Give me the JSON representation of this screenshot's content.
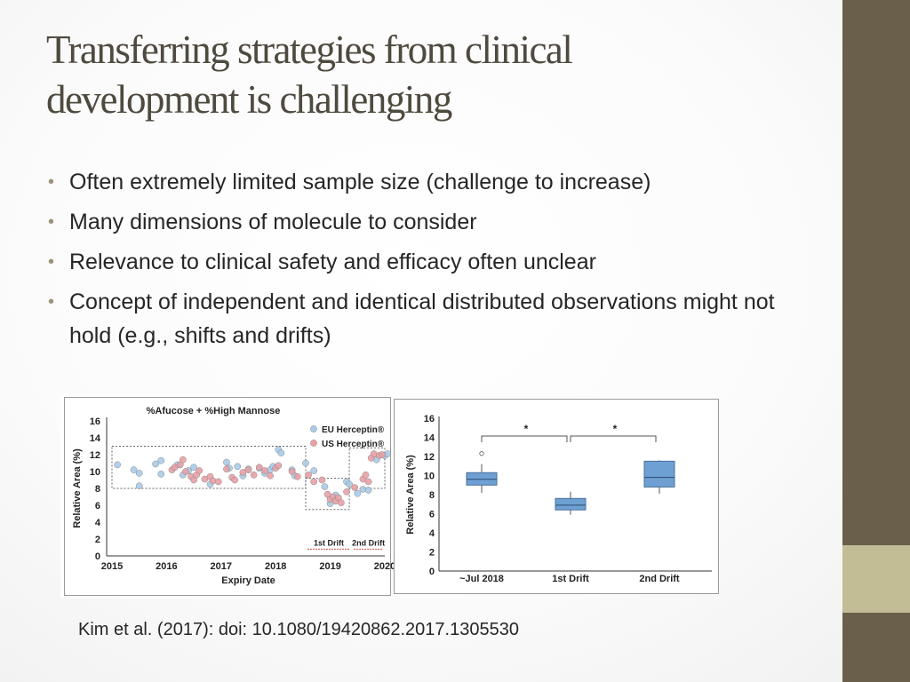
{
  "slide": {
    "title_lines": [
      "Transferring strategies from clinical",
      "development is challenging"
    ],
    "bullets": [
      "Often extremely limited sample size (challenge to increase)",
      "Many dimensions of molecule to consider",
      "Relevance to clinical safety and efficacy often unclear",
      "Concept of independent and identical distributed observations might not hold (e.g., shifts and drifts)"
    ],
    "citation": "Kim et al. (2017): doi: 10.1080/19420862.2017.1305530",
    "colors": {
      "sidebar": "#6a5f4b",
      "sidebar_accent": "#c2bd94",
      "title": "#4f4a3f",
      "bullet": "#9d9477"
    }
  },
  "chart_data": [
    {
      "type": "scatter",
      "title": "%Afucose + %High Mannose",
      "xlabel": "Expiry Date",
      "ylabel": "Relative Area (%)",
      "xticks": [
        "2015",
        "2016",
        "2017",
        "2018",
        "2019",
        "2020"
      ],
      "yticks": [
        "0",
        "2",
        "4",
        "6",
        "8",
        "10",
        "12",
        "14",
        "16"
      ],
      "xlim": [
        2015,
        2020
      ],
      "ylim": [
        0,
        16
      ],
      "legend_position": "top-right",
      "series": [
        {
          "name": "EU Herceptin®",
          "color": "#a9cbe8",
          "points": [
            [
              2015.1,
              10.8
            ],
            [
              2015.4,
              10.2
            ],
            [
              2015.5,
              8.3
            ],
            [
              2015.5,
              9.8
            ],
            [
              2015.8,
              10.9
            ],
            [
              2015.9,
              11.3
            ],
            [
              2015.9,
              9.7
            ],
            [
              2016.2,
              10.8
            ],
            [
              2016.3,
              9.6
            ],
            [
              2016.4,
              10.1
            ],
            [
              2016.5,
              10.5
            ],
            [
              2016.8,
              8.5
            ],
            [
              2017.1,
              11.1
            ],
            [
              2017.15,
              10.4
            ],
            [
              2017.3,
              10.6
            ],
            [
              2017.4,
              9.5
            ],
            [
              2017.5,
              10.3
            ],
            [
              2017.7,
              10.4
            ],
            [
              2017.8,
              9.8
            ],
            [
              2017.9,
              10.2
            ],
            [
              2017.95,
              10.6
            ],
            [
              2018.05,
              12.6
            ],
            [
              2018.1,
              12.2
            ],
            [
              2018.3,
              10.2
            ],
            [
              2018.35,
              9.5
            ],
            [
              2018.55,
              11.0
            ],
            [
              2018.7,
              10.1
            ],
            [
              2018.9,
              8.2
            ],
            [
              2019.0,
              6.2
            ],
            [
              2019.1,
              7.2
            ],
            [
              2019.3,
              8.8
            ],
            [
              2019.35,
              8.5
            ],
            [
              2019.5,
              7.4
            ],
            [
              2019.6,
              7.9
            ],
            [
              2019.7,
              7.8
            ],
            [
              2019.85,
              11.4
            ],
            [
              2020.0,
              11.9
            ],
            [
              2020.05,
              12.1
            ]
          ]
        },
        {
          "name": "US Herceptin®",
          "color": "#e8a0a5",
          "points": [
            [
              2016.1,
              10.2
            ],
            [
              2016.15,
              10.5
            ],
            [
              2016.25,
              10.8
            ],
            [
              2016.3,
              11.4
            ],
            [
              2016.35,
              10.0
            ],
            [
              2016.45,
              9.4
            ],
            [
              2016.5,
              9.0
            ],
            [
              2016.55,
              9.6
            ],
            [
              2016.6,
              10.1
            ],
            [
              2016.7,
              9.1
            ],
            [
              2016.8,
              9.4
            ],
            [
              2016.85,
              8.9
            ],
            [
              2016.95,
              8.8
            ],
            [
              2017.1,
              10.3
            ],
            [
              2017.2,
              9.3
            ],
            [
              2017.25,
              9.0
            ],
            [
              2017.4,
              9.9
            ],
            [
              2017.5,
              10.2
            ],
            [
              2017.6,
              9.6
            ],
            [
              2017.7,
              10.5
            ],
            [
              2017.8,
              10.1
            ],
            [
              2017.9,
              9.5
            ],
            [
              2018.0,
              10.4
            ],
            [
              2018.05,
              10.7
            ],
            [
              2018.3,
              10.0
            ],
            [
              2018.4,
              9.4
            ],
            [
              2018.6,
              9.6
            ],
            [
              2018.7,
              8.8
            ],
            [
              2018.85,
              9.0
            ],
            [
              2018.95,
              7.3
            ],
            [
              2019.0,
              6.7
            ],
            [
              2019.05,
              7.0
            ],
            [
              2019.1,
              6.5
            ],
            [
              2019.15,
              6.9
            ],
            [
              2019.2,
              6.3
            ],
            [
              2019.3,
              7.6
            ],
            [
              2019.45,
              8.1
            ],
            [
              2019.6,
              9.1
            ],
            [
              2019.65,
              9.6
            ],
            [
              2019.7,
              8.8
            ],
            [
              2019.75,
              11.6
            ],
            [
              2019.8,
              12.1
            ],
            [
              2019.9,
              11.9
            ],
            [
              2019.95,
              12.0
            ]
          ]
        }
      ],
      "reference_bands": [
        {
          "x": [
            2015,
            2018.55
          ],
          "y": [
            8,
            13
          ]
        },
        {
          "x": [
            2018.55,
            2019.35
          ],
          "y": [
            5.5,
            9.2
          ]
        },
        {
          "x": [
            2019.35,
            2020
          ],
          "y": [
            8,
            12.8
          ]
        }
      ],
      "annotations": [
        {
          "text": "1st Drift",
          "x": [
            2018.55,
            2019.4
          ],
          "y": 0.8
        },
        {
          "text": "2nd Drift",
          "x": [
            2019.4,
            2020
          ],
          "y": 0.8
        }
      ]
    },
    {
      "type": "box",
      "xlabel": "",
      "ylabel": "Relative Area (%)",
      "categories": [
        "~Jul 2018",
        "1st Drift",
        "2nd Drift"
      ],
      "yticks": [
        "0",
        "2",
        "4",
        "6",
        "8",
        "10",
        "12",
        "14",
        "16"
      ],
      "ylim": [
        0,
        16
      ],
      "color": "#6fa0d4",
      "boxes": [
        {
          "min": 8.2,
          "q1": 9.0,
          "median": 9.6,
          "q3": 10.3,
          "max": 11.2,
          "outliers": [
            12.3
          ]
        },
        {
          "min": 5.9,
          "q1": 6.4,
          "median": 6.9,
          "q3": 7.6,
          "max": 8.3,
          "outliers": []
        },
        {
          "min": 8.1,
          "q1": 8.8,
          "median": 9.8,
          "q3": 11.5,
          "max": 11.6,
          "outliers": []
        }
      ],
      "significance": [
        {
          "pair": [
            0,
            1
          ],
          "label": "*"
        },
        {
          "pair": [
            1,
            2
          ],
          "label": "*"
        }
      ]
    }
  ]
}
